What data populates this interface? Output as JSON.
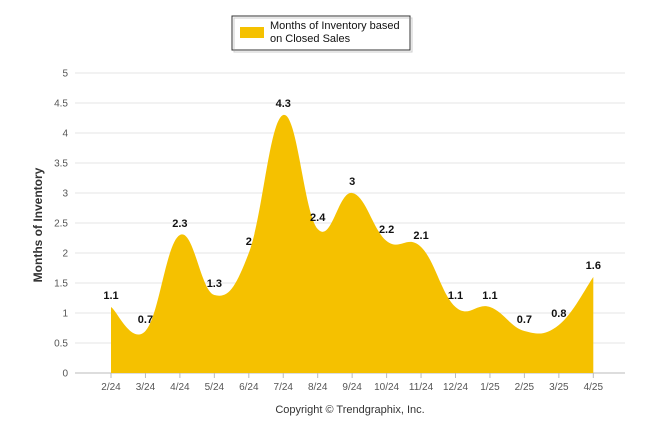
{
  "chart_data": {
    "type": "area",
    "categories": [
      "2/24",
      "3/24",
      "4/24",
      "5/24",
      "6/24",
      "7/24",
      "8/24",
      "9/24",
      "10/24",
      "11/24",
      "12/24",
      "1/25",
      "2/25",
      "3/25",
      "4/25"
    ],
    "series": [
      {
        "name": "Months of Inventory based on Closed Sales",
        "values": [
          1.1,
          0.7,
          2.3,
          1.3,
          2,
          4.3,
          2.4,
          3,
          2.2,
          2.1,
          1.1,
          1.1,
          0.7,
          0.8,
          1.6
        ],
        "labels": [
          "1.1",
          "0.7",
          "2.3",
          "1.3",
          "2",
          "4.3",
          "2.4",
          "3",
          "2.2",
          "2.1",
          "1.1",
          "1.1",
          "0.7",
          "0.8",
          "1.6"
        ]
      }
    ],
    "legend": {
      "line1": "Months of Inventory based",
      "line2": "on Closed Sales",
      "position": "top-center"
    },
    "ylabel": "Months of Inventory",
    "xlabel": "",
    "ylim": [
      0,
      5
    ],
    "yticks": [
      "0",
      "0.5",
      "1",
      "1.5",
      "2",
      "2.5",
      "3",
      "3.5",
      "4",
      "4.5",
      "5"
    ],
    "grid": true,
    "footer": "Copyright © Trendgraphix, Inc.",
    "colors": {
      "area": "#f5c100",
      "grid": "#e6e6e6",
      "axis": "#bbbbbb"
    }
  }
}
